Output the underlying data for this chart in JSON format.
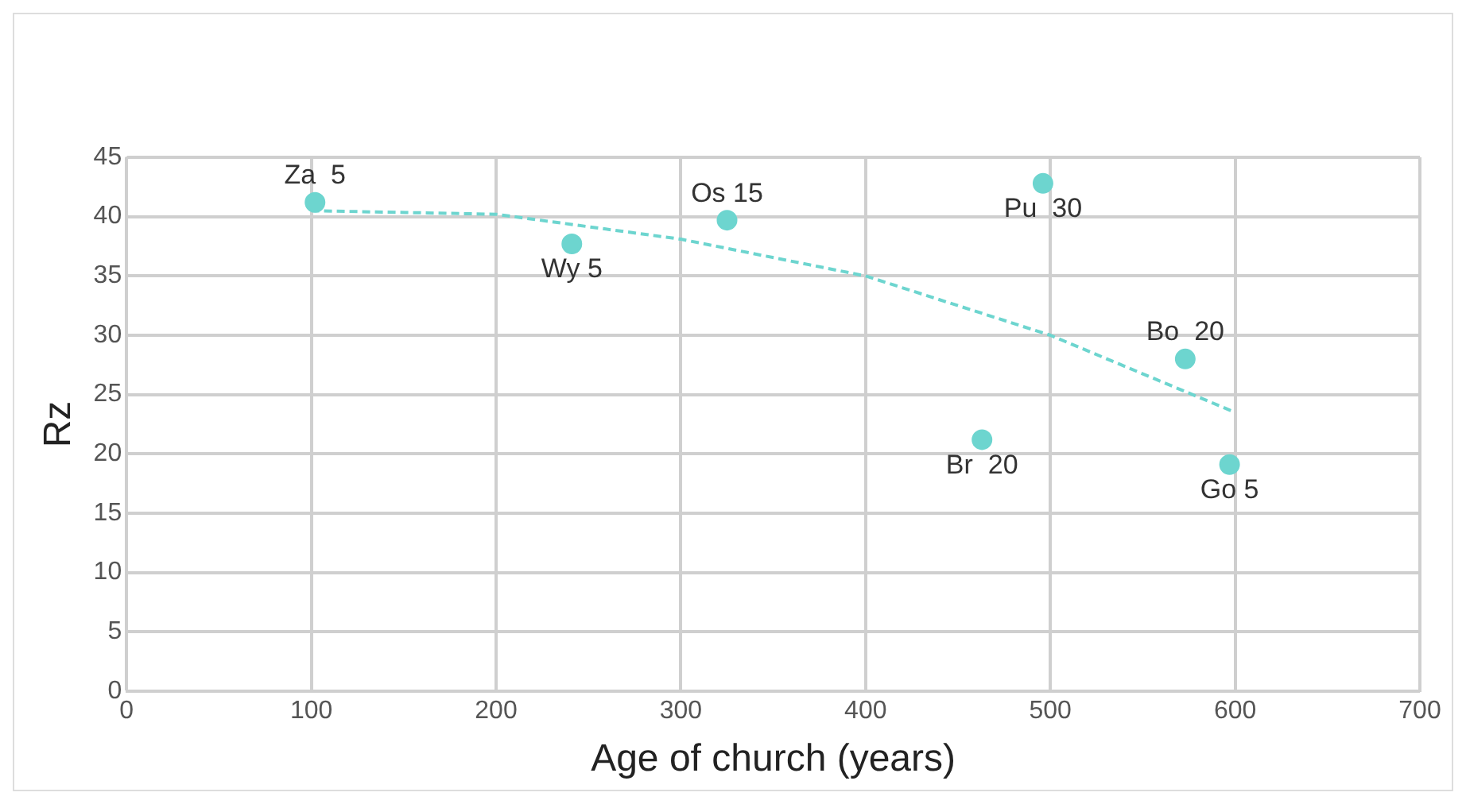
{
  "chart_data": {
    "type": "scatter",
    "xlabel": "Age of church (years)",
    "ylabel": "Rz",
    "series": [
      {
        "type": "scatter",
        "color": "#6dd5cf",
        "x": [
          102,
          241,
          325,
          496,
          573,
          463,
          597
        ],
        "values": [
          41.2,
          37.7,
          39.7,
          42.8,
          28.0,
          21.2,
          19.1
        ],
        "marker": "circle"
      },
      {
        "type": "line",
        "color": "#6dd5cf",
        "x": [
          100,
          200,
          300,
          400,
          500,
          600
        ],
        "values": [
          40.5,
          40.2,
          38.1,
          35,
          30,
          23.5
        ],
        "marker": "none",
        "line_style": "dashed"
      }
    ],
    "xlim": [
      0,
      700
    ],
    "xticks": [
      0,
      100,
      200,
      300,
      400,
      500,
      600,
      700
    ],
    "ylim": [
      0,
      45
    ],
    "yticks": [
      0,
      5,
      10,
      15,
      20,
      25,
      30,
      35,
      40,
      45
    ],
    "grid": true,
    "legend": false,
    "annotations": [
      {
        "text": "Za  5",
        "x": 102,
        "y": 41.2
      },
      {
        "text": "Wy 5",
        "x": 241,
        "y": 37.7
      },
      {
        "text": "Os 15",
        "x": 325,
        "y": 39.7
      },
      {
        "text": "Pu  30",
        "x": 496,
        "y": 42.8
      },
      {
        "text": "Bo  20",
        "x": 573,
        "y": 28.0
      },
      {
        "text": "Br  20",
        "x": 463,
        "y": 21.2
      },
      {
        "text": "Go 5",
        "x": 597,
        "y": 19.1
      }
    ]
  }
}
